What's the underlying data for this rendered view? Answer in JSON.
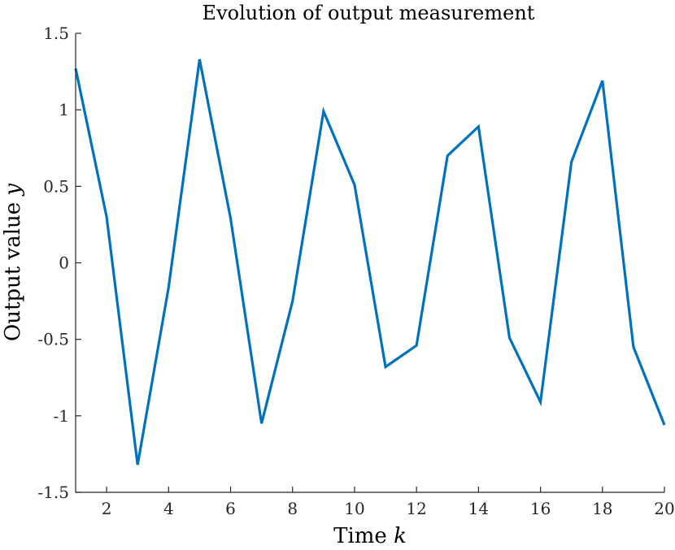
{
  "chart_data": {
    "type": "line",
    "title": "Evolution of output measurement",
    "xlabel": "Time ",
    "xlabel_var": "k",
    "ylabel": "Output value ",
    "ylabel_var": "y",
    "xlim": [
      1,
      20
    ],
    "ylim": [
      -1.5,
      1.5
    ],
    "xticks": [
      2,
      4,
      6,
      8,
      10,
      12,
      14,
      16,
      18,
      20
    ],
    "yticks": [
      -1.5,
      -1,
      -0.5,
      0,
      0.5,
      1,
      1.5
    ],
    "ytick_labels": [
      "-1.5",
      "-1",
      "-0.5",
      "0",
      "0.5",
      "1",
      "1.5"
    ],
    "grid": false,
    "line_color": "#0072BD",
    "series": [
      {
        "x": [
          1,
          2,
          3,
          4,
          5,
          6,
          7,
          8,
          9,
          10,
          11,
          12,
          13,
          14,
          15,
          16,
          17,
          18,
          19,
          20
        ],
        "values": [
          1.27,
          0.3,
          -1.32,
          -0.16,
          1.33,
          0.29,
          -1.05,
          -0.25,
          0.99,
          0.51,
          -0.68,
          -0.54,
          0.7,
          0.89,
          -0.49,
          -0.91,
          0.66,
          1.19,
          -0.55,
          -1.06
        ]
      }
    ]
  }
}
